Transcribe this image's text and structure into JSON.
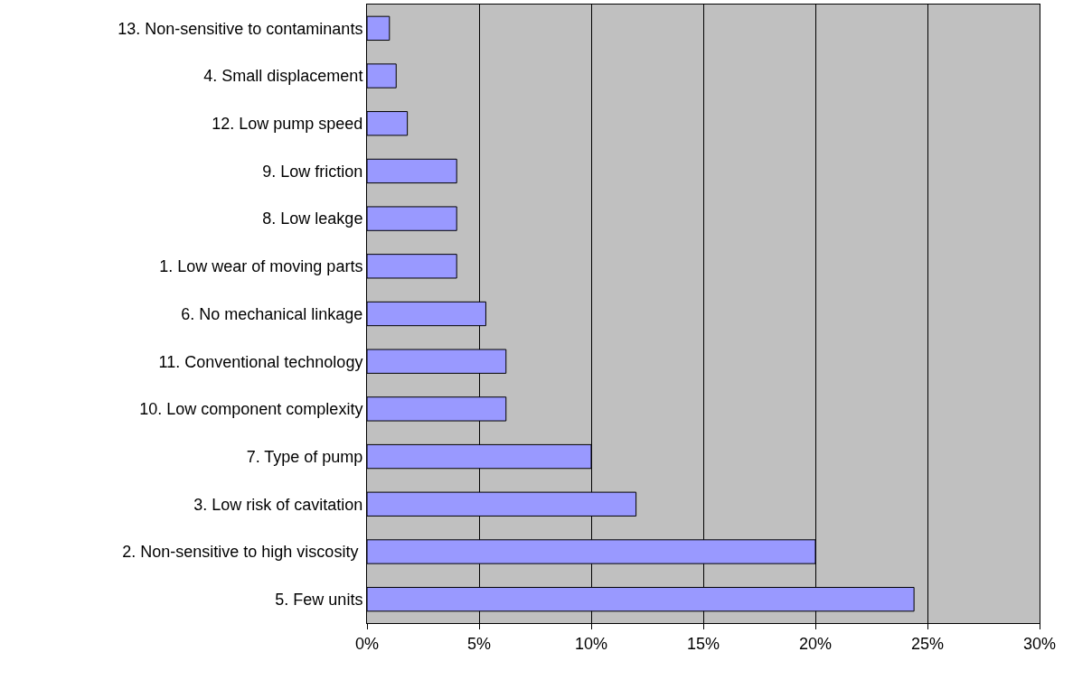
{
  "chart_data": {
    "type": "bar",
    "orientation": "horizontal",
    "categories": [
      "13. Non-sensitive to contaminants",
      "4. Small displacement",
      "12. Low pump speed",
      "9. Low friction",
      "8. Low leakge",
      "1. Low wear of moving parts",
      "6. No mechanical linkage",
      "11. Conventional technology",
      "10. Low component complexity",
      "7. Type of pump",
      "3. Low risk of cavitation",
      "2. Non-sensitive to high viscosity ",
      "5. Few units"
    ],
    "values": [
      1.0,
      1.3,
      1.8,
      4.0,
      4.0,
      4.0,
      5.3,
      6.2,
      6.2,
      10.0,
      12.0,
      20.0,
      24.4
    ],
    "color": "#9999ff",
    "xlim": [
      0,
      30
    ],
    "xticks": [
      {
        "value": 0,
        "label": "0%"
      },
      {
        "value": 5,
        "label": "5%"
      },
      {
        "value": 10,
        "label": "10%"
      },
      {
        "value": 15,
        "label": "15%"
      },
      {
        "value": 20,
        "label": "20%"
      },
      {
        "value": 25,
        "label": "25%"
      },
      {
        "value": 30,
        "label": "30%"
      }
    ],
    "grid": "x",
    "legend": false
  }
}
